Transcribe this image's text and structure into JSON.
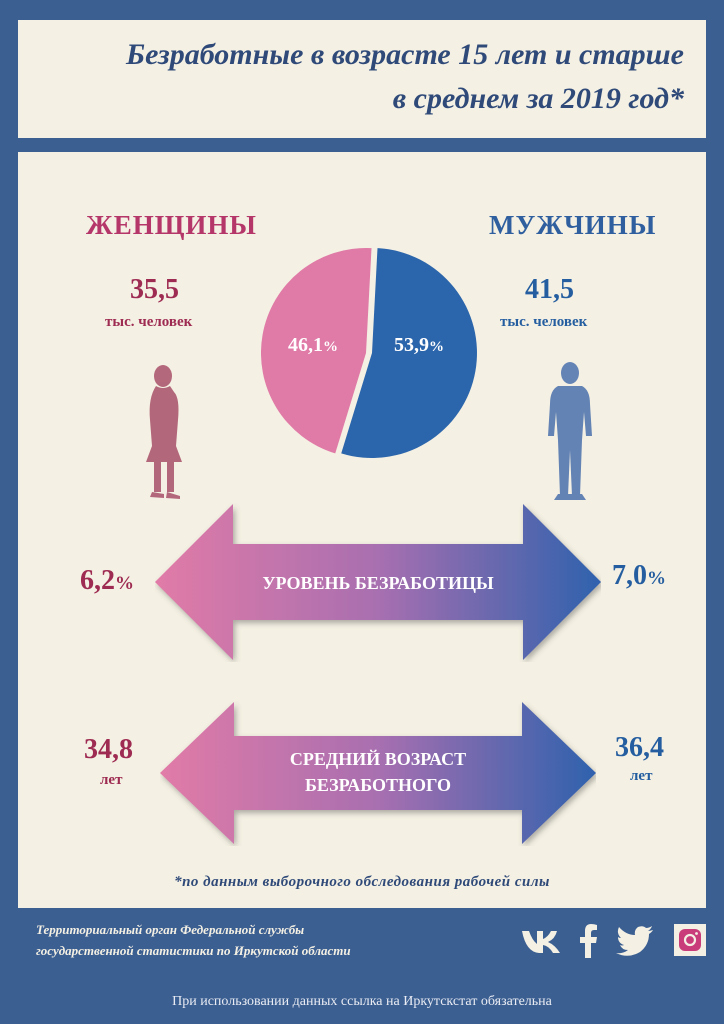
{
  "header": {
    "title_line1": "Безработные в возрасте 15 лет и старше",
    "title_line2": "в среднем за 2019 год*"
  },
  "women": {
    "label": "ЖЕНЩИНЫ",
    "count": "35,5",
    "count_unit": "тыс. человек",
    "share": "46,1",
    "unemployment_rate": "6,2",
    "avg_age": "34,8",
    "age_unit": "лет",
    "color": "#e07aa6"
  },
  "men": {
    "label": "МУЖЧИНЫ",
    "count": "41,5",
    "count_unit": "тыс. человек",
    "share": "53,9",
    "unemployment_rate": "7,0",
    "avg_age": "36,4",
    "age_unit": "лет",
    "color": "#2b65ab"
  },
  "percent_sign": "%",
  "arrows": {
    "rate_label": "УРОВЕНЬ БЕЗРАБОТИЦЫ",
    "age_label_line1": "СРЕДНИЙ ВОЗРАСТ",
    "age_label_line2": "БЕЗРАБОТНОГО"
  },
  "footnote": "*по данным выборочного обследования рабочей силы",
  "footer": {
    "org_line1": "Территориальный орган Федеральной службы",
    "org_line2": "государственной статистики по Иркутской области",
    "notice": "При использовании данных ссылка на Иркутскстат обязательна",
    "icons": [
      "vk-icon",
      "facebook-icon",
      "twitter-icon",
      "instagram-icon"
    ]
  }
}
